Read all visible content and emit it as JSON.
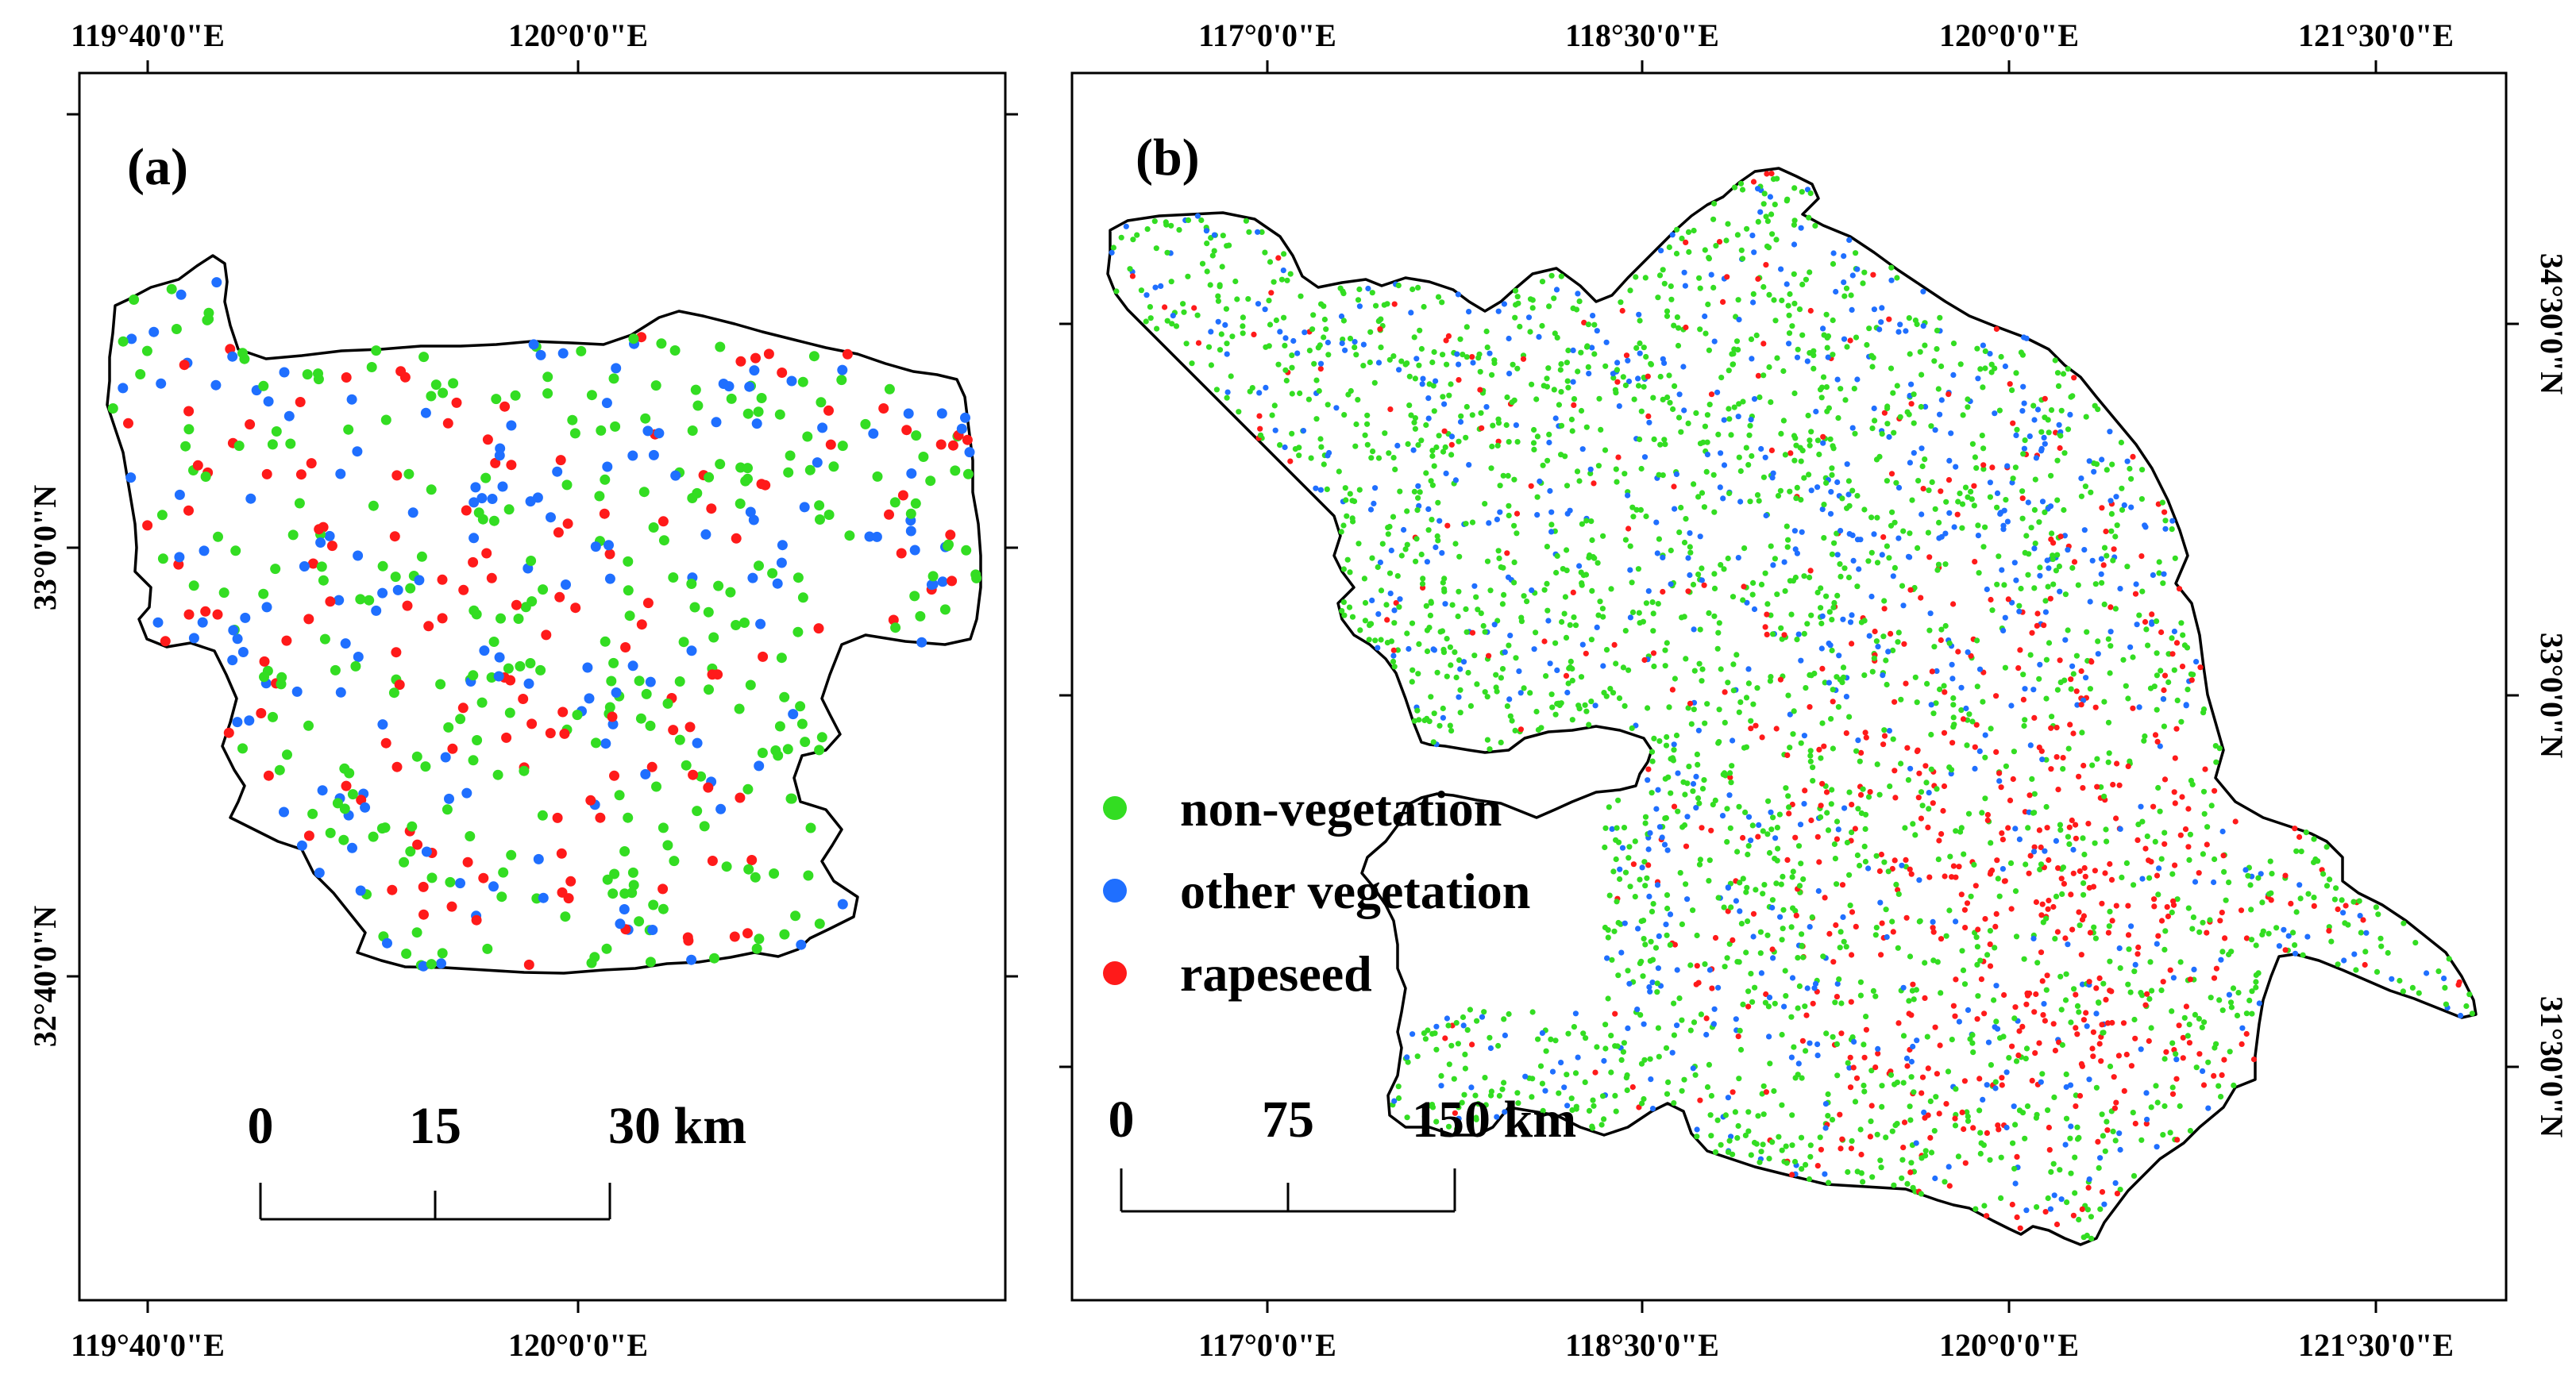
{
  "figure": {
    "panel_a": {
      "label": "(a)",
      "top_lon_labels": [
        "119°40'0\"E",
        "120°0'0\"E"
      ],
      "bottom_lon_labels": [
        "119°40'0\"E",
        "120°0'0\"E"
      ],
      "left_lat_labels": [
        "33°0'0\"N",
        "32°40'0\"N"
      ],
      "scale": {
        "n0": "0",
        "n1": "15",
        "n2": "30 km"
      }
    },
    "panel_b": {
      "label": "(b)",
      "top_lon_labels": [
        "117°0'0\"E",
        "118°30'0\"E",
        "120°0'0\"E",
        "121°30'0\"E"
      ],
      "bottom_lon_labels": [
        "117°0'0\"E",
        "118°30'0\"E",
        "120°0'0\"E",
        "121°30'0\"E"
      ],
      "right_lat_labels": [
        "34°30'0\"N",
        "33°0'0\"N",
        "31°30'0\"N"
      ],
      "scale": {
        "n0": "0",
        "n1": "75",
        "n2": "150 km"
      }
    },
    "legend": {
      "items": [
        {
          "label": "non-vegetation",
          "color": "#33dd22"
        },
        {
          "label": "other vegetation",
          "color": "#1f6fff"
        },
        {
          "label": "rapeseed",
          "color": "#ff1a1a"
        }
      ]
    },
    "colors": {
      "non_vegetation": "#33dd22",
      "other_vegetation": "#1f6fff",
      "rapeseed": "#ff1a1a"
    }
  }
}
